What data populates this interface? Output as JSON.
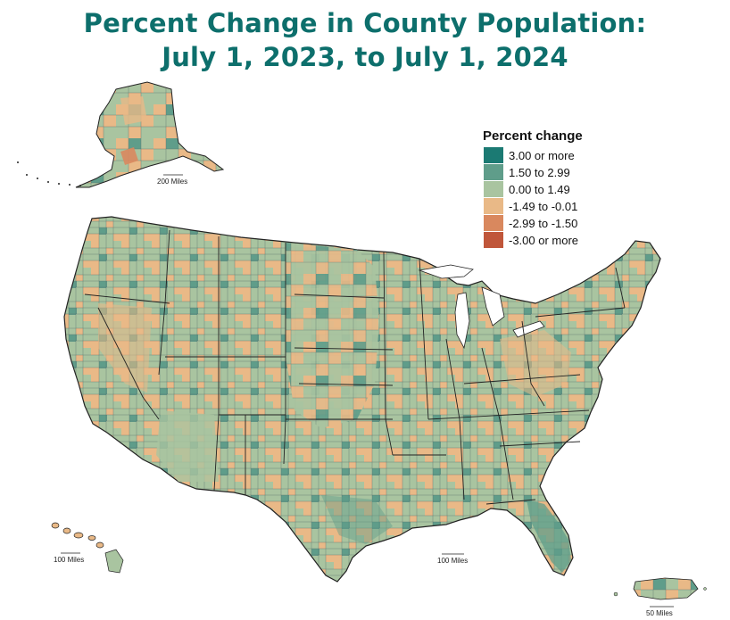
{
  "title": {
    "line1": "Percent Change in County Population:",
    "line2": "July 1, 2023, to July 1, 2024"
  },
  "legend": {
    "title": "Percent change",
    "items": [
      {
        "label": "3.00 or more",
        "color": "#1b7a73"
      },
      {
        "label": "1.50 to 2.99",
        "color": "#5f9d8a"
      },
      {
        "label": "0.00 to 1.49",
        "color": "#a9c4a0"
      },
      {
        "label": "-1.49 to -0.01",
        "color": "#e9b987"
      },
      {
        "label": "-2.99 to -1.50",
        "color": "#d9885e"
      },
      {
        "label": "-3.00 or more",
        "color": "#c0563a"
      }
    ]
  },
  "scales": {
    "alaska": "200 Miles",
    "conus": "100 Miles",
    "hawaii": "100 Miles",
    "puerto_rico": "50 Miles"
  },
  "map": {
    "regions": [
      "Contiguous United States",
      "Alaska",
      "Hawaii",
      "Puerto Rico"
    ],
    "dominant_class_by_area": "0.00 to 1.49"
  }
}
